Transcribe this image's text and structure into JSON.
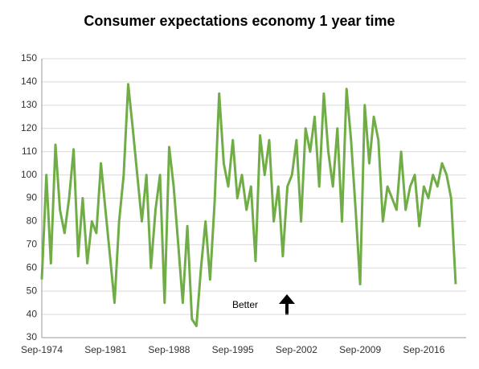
{
  "chart_data": {
    "type": "line",
    "title": "Consumer expectations economy 1 year time",
    "annotation": "Better",
    "categories": [
      "Sep-1974",
      null,
      null,
      null,
      null,
      null,
      null,
      null,
      null,
      null,
      null,
      null,
      null,
      null,
      "Sep-1981",
      null,
      null,
      null,
      null,
      null,
      null,
      null,
      null,
      null,
      null,
      null,
      null,
      null,
      "Sep-1988",
      null,
      null,
      null,
      null,
      null,
      null,
      null,
      null,
      null,
      null,
      null,
      null,
      null,
      "Sep-1995",
      null,
      null,
      null,
      null,
      null,
      null,
      null,
      null,
      null,
      null,
      null,
      null,
      null,
      "Sep-2002",
      null,
      null,
      null,
      null,
      null,
      null,
      null,
      null,
      null,
      null,
      null,
      null,
      null,
      "Sep-2009",
      null,
      null,
      null,
      null,
      null,
      null,
      null,
      null,
      null,
      null,
      null,
      null,
      null,
      "Sep-2016",
      null,
      null,
      null,
      null,
      null,
      null,
      null
    ],
    "series": [
      {
        "name": "Consumer expectations",
        "color": "#70ad47",
        "values": [
          55,
          100,
          62,
          113,
          85,
          75,
          90,
          111,
          65,
          90,
          62,
          80,
          75,
          105,
          85,
          65,
          45,
          80,
          100,
          139,
          120,
          100,
          80,
          100,
          60,
          85,
          100,
          45,
          112,
          95,
          70,
          45,
          78,
          38,
          35,
          60,
          80,
          55,
          88,
          135,
          105,
          95,
          115,
          90,
          100,
          85,
          95,
          63,
          117,
          100,
          115,
          80,
          95,
          65,
          95,
          100,
          115,
          80,
          120,
          110,
          125,
          95,
          135,
          110,
          95,
          120,
          80,
          137,
          115,
          85,
          53,
          130,
          105,
          125,
          115,
          80,
          95,
          90,
          85,
          110,
          85,
          95,
          100,
          78,
          95,
          90,
          100,
          95,
          105,
          100,
          90,
          53
        ]
      }
    ],
    "ylim": [
      30,
      150
    ],
    "yticks": [
      30,
      40,
      50,
      60,
      70,
      80,
      90,
      100,
      110,
      120,
      130,
      140,
      150
    ],
    "grid": true
  }
}
